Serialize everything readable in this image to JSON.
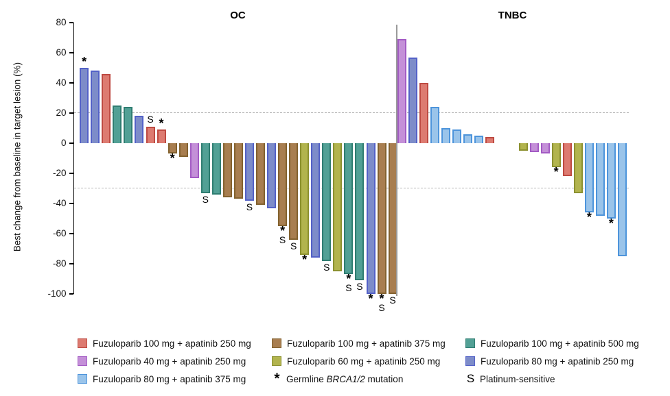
{
  "chart_data": {
    "type": "bar",
    "subtype": "waterfall",
    "ylabel": "Best change from baseline in target lesion (%)",
    "yticks": [
      80,
      60,
      40,
      20,
      0,
      -20,
      -40,
      -60,
      -80,
      -100
    ],
    "ylim": [
      -100,
      80
    ],
    "reference_lines": [
      20,
      -30
    ],
    "grid": "dashed horizontal reference lines at +20 and -30",
    "legend_position": "bottom",
    "colors": {
      "red": {
        "fill": "#DD7B71",
        "border": "#BE4A42"
      },
      "brown": {
        "fill": "#A87E50",
        "border": "#83622F"
      },
      "teal": {
        "fill": "#52A095",
        "border": "#2F7D71"
      },
      "orchid": {
        "fill": "#C490D8",
        "border": "#A35BC4"
      },
      "olive": {
        "fill": "#B2B44E",
        "border": "#8C9130"
      },
      "slate": {
        "fill": "#7D8CC9",
        "border": "#5361C7"
      },
      "lightblue": {
        "fill": "#9AC4EA",
        "border": "#4D94DB"
      }
    },
    "groups": [
      {
        "title": "OC",
        "bars": [
          {
            "value": 50,
            "color": "slate",
            "marker": "*"
          },
          {
            "value": 48,
            "color": "slate",
            "marker": ""
          },
          {
            "value": 46,
            "color": "red",
            "marker": ""
          },
          {
            "value": 25,
            "color": "teal",
            "marker": ""
          },
          {
            "value": 24,
            "color": "teal",
            "marker": ""
          },
          {
            "value": 18,
            "color": "slate",
            "marker": ""
          },
          {
            "value": 11,
            "color": "red",
            "marker": "S"
          },
          {
            "value": 9,
            "color": "red",
            "marker": "*"
          },
          {
            "value": -7,
            "color": "brown",
            "marker": "*"
          },
          {
            "value": -9,
            "color": "brown",
            "marker": ""
          },
          {
            "value": -23,
            "color": "orchid",
            "marker": ""
          },
          {
            "value": -33,
            "color": "teal",
            "marker": "S"
          },
          {
            "value": -34,
            "color": "teal",
            "marker": ""
          },
          {
            "value": -36,
            "color": "brown",
            "marker": ""
          },
          {
            "value": -37,
            "color": "brown",
            "marker": ""
          },
          {
            "value": -38,
            "color": "slate",
            "marker": "S"
          },
          {
            "value": -41,
            "color": "brown",
            "marker": ""
          },
          {
            "value": -43,
            "color": "slate",
            "marker": ""
          },
          {
            "value": -55,
            "color": "brown",
            "marker": "*S"
          },
          {
            "value": -64,
            "color": "brown",
            "marker": "S"
          },
          {
            "value": -74,
            "color": "olive",
            "marker": "*"
          },
          {
            "value": -76,
            "color": "slate",
            "marker": ""
          },
          {
            "value": -78,
            "color": "teal",
            "marker": "S"
          },
          {
            "value": -85,
            "color": "olive",
            "marker": ""
          },
          {
            "value": -87,
            "color": "teal",
            "marker": "*S"
          },
          {
            "value": -91,
            "color": "teal",
            "marker": "S"
          },
          {
            "value": -100,
            "color": "slate",
            "marker": "*"
          },
          {
            "value": -100,
            "color": "brown",
            "marker": "*S"
          },
          {
            "value": -100,
            "color": "brown",
            "marker": "S"
          }
        ]
      },
      {
        "title": "TNBC",
        "bars": [
          {
            "value": 69,
            "color": "orchid",
            "marker": ""
          },
          {
            "value": 57,
            "color": "slate",
            "marker": ""
          },
          {
            "value": 40,
            "color": "red",
            "marker": ""
          },
          {
            "value": 24,
            "color": "lightblue",
            "marker": ""
          },
          {
            "value": 10,
            "color": "lightblue",
            "marker": ""
          },
          {
            "value": 9,
            "color": "lightblue",
            "marker": ""
          },
          {
            "value": 6,
            "color": "lightblue",
            "marker": ""
          },
          {
            "value": 5,
            "color": "lightblue",
            "marker": ""
          },
          {
            "value": 4,
            "color": "red",
            "marker": ""
          },
          {
            "value": 0,
            "color": "none",
            "marker": ""
          },
          {
            "value": 0,
            "color": "none",
            "marker": ""
          },
          {
            "value": -5,
            "color": "olive",
            "marker": ""
          },
          {
            "value": -6,
            "color": "orchid",
            "marker": ""
          },
          {
            "value": -7,
            "color": "orchid",
            "marker": ""
          },
          {
            "value": -16,
            "color": "olive",
            "marker": "*"
          },
          {
            "value": -22,
            "color": "red",
            "marker": ""
          },
          {
            "value": -33,
            "color": "olive",
            "marker": ""
          },
          {
            "value": -46,
            "color": "lightblue",
            "marker": "*"
          },
          {
            "value": -48,
            "color": "lightblue",
            "marker": ""
          },
          {
            "value": -50,
            "color": "lightblue",
            "marker": "*"
          },
          {
            "value": -75,
            "color": "lightblue",
            "marker": ""
          }
        ]
      }
    ]
  },
  "legend": {
    "columns": [
      {
        "items": [
          {
            "swatch": "red",
            "parts": [
              {
                "t": "Fuzuloparib 100 mg + apatinib 250 mg"
              }
            ]
          },
          {
            "swatch": "orchid",
            "parts": [
              {
                "t": "Fuzuloparib 40 mg + apatinib 250 mg"
              }
            ]
          },
          {
            "swatch": "lightblue",
            "parts": [
              {
                "t": "Fuzuloparib 80 mg + apatinib 375 mg"
              }
            ]
          }
        ]
      },
      {
        "items": [
          {
            "swatch": "brown",
            "parts": [
              {
                "t": "Fuzuloparib 100 mg + apatinib 375 mg"
              }
            ]
          },
          {
            "swatch": "olive",
            "parts": [
              {
                "t": "Fuzuloparib 60 mg + apatinib 250 mg"
              }
            ]
          },
          {
            "symbol": "*",
            "parts": [
              {
                "t": "Germline "
              },
              {
                "t": "BRCA1/2",
                "i": true
              },
              {
                "t": " mutation"
              }
            ]
          }
        ]
      },
      {
        "items": [
          {
            "swatch": "teal",
            "parts": [
              {
                "t": "Fuzuloparib 100 mg + apatinib 500 mg"
              }
            ]
          },
          {
            "swatch": "slate",
            "parts": [
              {
                "t": "Fuzuloparib 80 mg + apatinib 250 mg"
              }
            ]
          },
          {
            "symbol": "S",
            "parts": [
              {
                "t": "Platinum-sensitive"
              }
            ]
          }
        ]
      }
    ]
  }
}
